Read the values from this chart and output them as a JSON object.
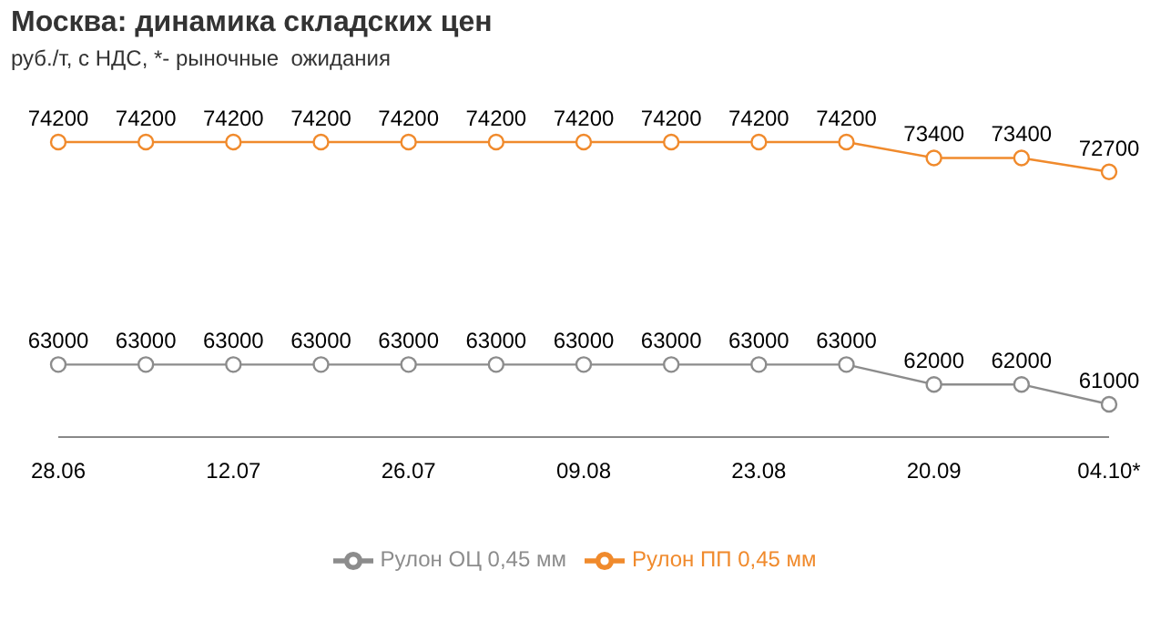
{
  "chart_data": {
    "type": "line",
    "title": "Москва: динамика складских цен",
    "subtitle": "руб./т, с НДС, *- рыночные  ожидания",
    "categories": [
      "28.06",
      null,
      "12.07",
      null,
      "26.07",
      null,
      "09.08",
      null,
      "23.08",
      null,
      "20.09",
      null,
      "04.10*"
    ],
    "series": [
      {
        "name": "Рулон ПП 0,45 мм",
        "color": "#f08a2c",
        "values": [
          74200,
          74200,
          74200,
          74200,
          74200,
          74200,
          74200,
          74200,
          74200,
          74200,
          73400,
          73400,
          72700
        ]
      },
      {
        "name": "Рулон ОЦ 0,45 мм",
        "color": "#8c8c8c",
        "values": [
          63000,
          63000,
          63000,
          63000,
          63000,
          63000,
          63000,
          63000,
          63000,
          63000,
          62000,
          62000,
          61000
        ]
      }
    ],
    "data_labels": true,
    "marker": "circle",
    "legend": "bottom",
    "grid": false
  }
}
